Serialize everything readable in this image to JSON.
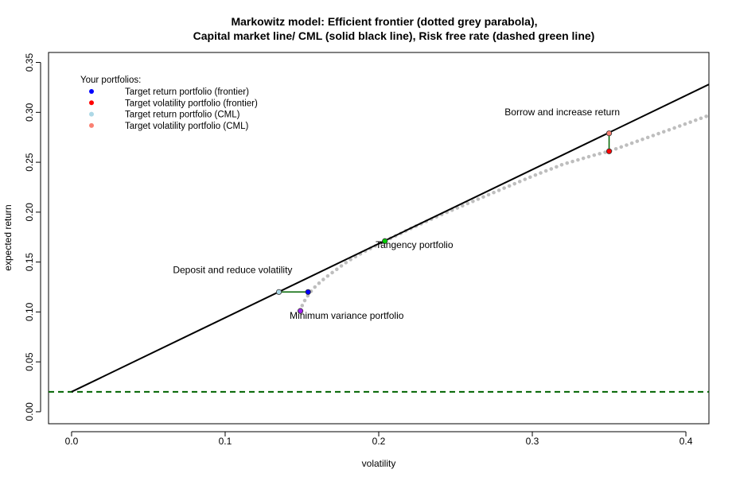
{
  "chart_data": {
    "type": "line",
    "title": [
      "Markowitz model: Efficient frontier (dotted grey parabola),",
      "Capital market line/ CML (solid black line), Risk free rate (dashed green line)"
    ],
    "xlabel": "volatility",
    "ylabel": "expected return",
    "xlim": [
      -0.015,
      0.415
    ],
    "ylim": [
      -0.012,
      0.36
    ],
    "xticks": [
      "0.0",
      "0.1",
      "0.2",
      "0.3",
      "0.4"
    ],
    "yticks": [
      "0.00",
      "0.05",
      "0.10",
      "0.15",
      "0.20",
      "0.25",
      "0.30",
      "0.35"
    ],
    "grid": false,
    "risk_free_rate": 0.02,
    "cml": {
      "x": [
        0.0,
        0.415
      ],
      "y": [
        0.02,
        0.328
      ],
      "color": "#000000",
      "style": "solid"
    },
    "risk_free_line": {
      "y": 0.02,
      "color": "#006400",
      "style": "dashed"
    },
    "frontier": {
      "color": "#bebebe",
      "style": "dotted",
      "min_variance": {
        "x": 0.149,
        "y": 0.101
      },
      "points": [
        {
          "x": 0.149,
          "y": 0.101
        },
        {
          "x": 0.15,
          "y": 0.106
        },
        {
          "x": 0.152,
          "y": 0.112
        },
        {
          "x": 0.155,
          "y": 0.119
        },
        {
          "x": 0.159,
          "y": 0.126
        },
        {
          "x": 0.165,
          "y": 0.134
        },
        {
          "x": 0.172,
          "y": 0.142
        },
        {
          "x": 0.18,
          "y": 0.151
        },
        {
          "x": 0.19,
          "y": 0.16
        },
        {
          "x": 0.204,
          "y": 0.171
        },
        {
          "x": 0.22,
          "y": 0.183
        },
        {
          "x": 0.24,
          "y": 0.197
        },
        {
          "x": 0.26,
          "y": 0.21
        },
        {
          "x": 0.28,
          "y": 0.223
        },
        {
          "x": 0.3,
          "y": 0.236
        },
        {
          "x": 0.32,
          "y": 0.248
        },
        {
          "x": 0.34,
          "y": 0.257
        },
        {
          "x": 0.35,
          "y": 0.261
        },
        {
          "x": 0.37,
          "y": 0.272
        },
        {
          "x": 0.39,
          "y": 0.283
        },
        {
          "x": 0.415,
          "y": 0.297
        }
      ]
    },
    "portfolios": [
      {
        "name": "Minimum variance portfolio",
        "x": 0.149,
        "y": 0.101,
        "color": "#a020f0"
      },
      {
        "name": "Tangency portfolio",
        "x": 0.204,
        "y": 0.171,
        "color": "#00cd00"
      },
      {
        "name": "Target return portfolio (frontier)",
        "x": 0.154,
        "y": 0.12,
        "color": "#0000ff"
      },
      {
        "name": "Target volatility portfolio (frontier)",
        "x": 0.35,
        "y": 0.261,
        "color": "#ff0000"
      },
      {
        "name": "Target return portfolio (CML)",
        "x": 0.135,
        "y": 0.12,
        "color": "#add8e6"
      },
      {
        "name": "Target volatility portfolio (CML)",
        "x": 0.35,
        "y": 0.279,
        "color": "#fa8072"
      }
    ],
    "connectors": [
      {
        "x": [
          0.135,
          0.154
        ],
        "y": [
          0.12,
          0.12
        ],
        "color": "#006400"
      },
      {
        "x": [
          0.35,
          0.35
        ],
        "y": [
          0.279,
          0.261
        ],
        "color": "#006400"
      }
    ],
    "annotations": [
      {
        "text": "Deposit and reduce volatility",
        "x": 0.066,
        "y": 0.139
      },
      {
        "text": "Tangency portfolio",
        "x": 0.198,
        "y": 0.164
      },
      {
        "text": "Minimum variance portfolio",
        "x": 0.142,
        "y": 0.093
      },
      {
        "text": "Borrow and increase return",
        "x": 0.282,
        "y": 0.297
      }
    ],
    "legend": {
      "title": "Your portfolios:",
      "position": "top-left",
      "entries": [
        {
          "label": "Target return portfolio (frontier)",
          "color": "#0000ff"
        },
        {
          "label": "Target volatility portfolio (frontier)",
          "color": "#ff0000"
        },
        {
          "label": "Target return portfolio (CML)",
          "color": "#add8e6"
        },
        {
          "label": "Target volatility portfolio (CML)",
          "color": "#fa8072"
        }
      ]
    }
  }
}
